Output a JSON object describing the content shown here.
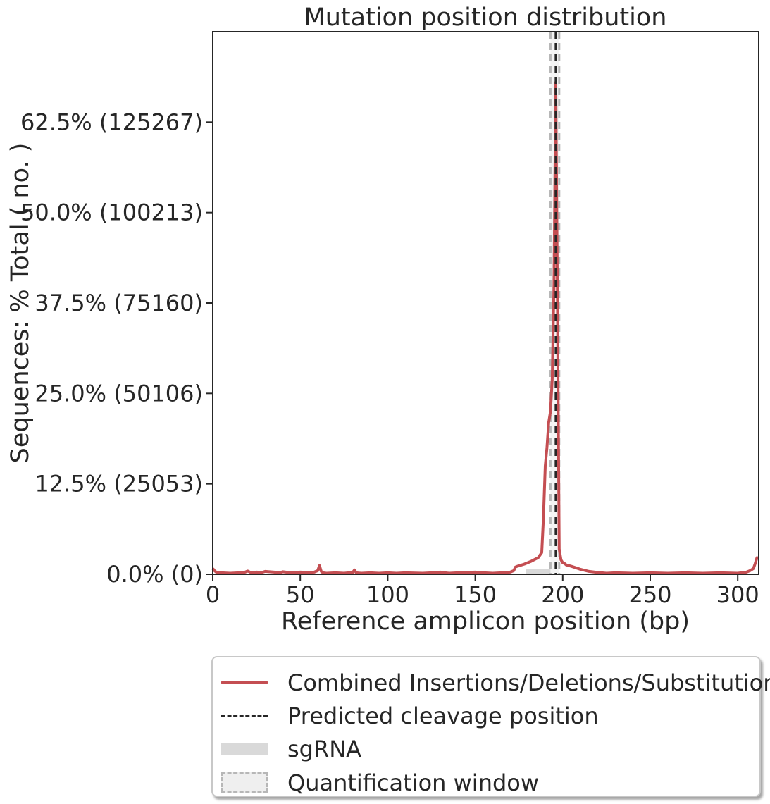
{
  "chart_data": {
    "type": "line",
    "title": "Mutation position distribution",
    "xlabel": "Reference amplicon position (bp)",
    "ylabel": "Sequences: % Total ( no. )",
    "xlim": [
      0,
      312
    ],
    "ylim": [
      0,
      75
    ],
    "xticks": [
      0,
      50,
      100,
      150,
      200,
      250,
      300
    ],
    "xtick_labels": [
      "0",
      "50",
      "100",
      "150",
      "200",
      "250",
      "300"
    ],
    "yticks": [
      0,
      12.5,
      25.0,
      37.5,
      50.0,
      62.5
    ],
    "ytick_labels": [
      "0.0% (0)",
      "12.5% (25053)",
      "25.0% (50106)",
      "37.5% (75160)",
      "50.0% (100213)",
      "62.5% (125267)"
    ],
    "series": [
      {
        "name": "Combined Insertions/Deletions/Substitutions",
        "color": "#c44e52",
        "x": [
          0,
          1,
          2,
          5,
          10,
          15,
          18,
          20,
          22,
          25,
          28,
          30,
          35,
          38,
          40,
          45,
          50,
          55,
          58,
          60,
          61,
          62,
          63,
          65,
          70,
          75,
          80,
          81,
          82,
          85,
          90,
          95,
          100,
          105,
          110,
          120,
          125,
          130,
          135,
          140,
          145,
          150,
          155,
          160,
          165,
          170,
          172,
          173,
          174,
          178,
          182,
          186,
          188,
          189,
          190,
          191,
          192,
          193,
          194,
          195,
          196,
          197,
          198,
          199,
          200,
          201,
          202,
          205,
          210,
          215,
          220,
          225,
          230,
          240,
          250,
          260,
          270,
          280,
          290,
          300,
          305,
          307,
          309,
          310,
          311,
          312
        ],
        "values": [
          0.8,
          0.5,
          0.3,
          0.2,
          0.15,
          0.2,
          0.25,
          0.45,
          0.2,
          0.3,
          0.25,
          0.4,
          0.3,
          0.2,
          0.35,
          0.2,
          0.3,
          0.25,
          0.3,
          0.5,
          1.2,
          0.4,
          0.2,
          0.15,
          0.2,
          0.15,
          0.25,
          0.6,
          0.2,
          0.15,
          0.2,
          0.15,
          0.2,
          0.15,
          0.2,
          0.15,
          0.2,
          0.3,
          0.15,
          0.2,
          0.25,
          0.3,
          0.2,
          0.15,
          0.2,
          0.3,
          0.5,
          1.0,
          1.1,
          1.4,
          1.8,
          2.3,
          3.0,
          8.0,
          15.0,
          17.5,
          21.0,
          22.5,
          27.0,
          40.0,
          68.0,
          38.0,
          3.5,
          2.0,
          1.6,
          1.5,
          1.3,
          1.1,
          0.7,
          0.4,
          0.25,
          0.15,
          0.2,
          0.15,
          0.2,
          0.15,
          0.2,
          0.15,
          0.2,
          0.15,
          0.3,
          0.5,
          0.8,
          1.5,
          2.3,
          2.2
        ]
      }
    ],
    "predicted_cleavage_position": 196,
    "sgrna_range": [
      179,
      198
    ],
    "quantification_window": [
      193,
      198
    ],
    "grid": false,
    "legend_position": "bottom, outside plot"
  },
  "legend": {
    "items": [
      {
        "label": "Combined Insertions/Deletions/Substitutions",
        "kind": "line"
      },
      {
        "label": "Predicted cleavage position",
        "kind": "dashed"
      },
      {
        "label": "sgRNA",
        "kind": "band"
      },
      {
        "label": "Quantification window",
        "kind": "box"
      }
    ]
  }
}
